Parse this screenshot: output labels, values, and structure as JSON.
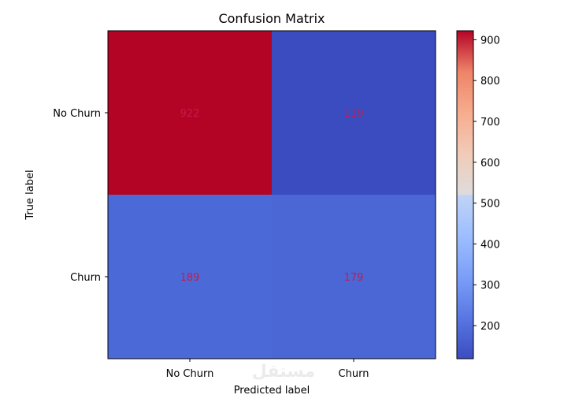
{
  "chart_data": {
    "type": "heatmap",
    "title": "Confusion Matrix",
    "xlabel": "Predicted label",
    "ylabel": "True label",
    "x_categories": [
      "No Churn",
      "Churn"
    ],
    "y_categories": [
      "No Churn",
      "Churn"
    ],
    "values": [
      [
        922,
        119
      ],
      [
        189,
        179
      ]
    ],
    "colormap": "coolwarm",
    "colorbar": {
      "range": [
        119,
        922
      ],
      "ticks": [
        200,
        300,
        400,
        500,
        600,
        700,
        800,
        900
      ]
    },
    "cell_colors": [
      [
        "#b40426",
        "#3a4cc0"
      ],
      [
        "#4c6ad7",
        "#4a67d5"
      ]
    ],
    "annotation_color": "#c41b4e",
    "grid": false
  },
  "watermark": "مستقل"
}
